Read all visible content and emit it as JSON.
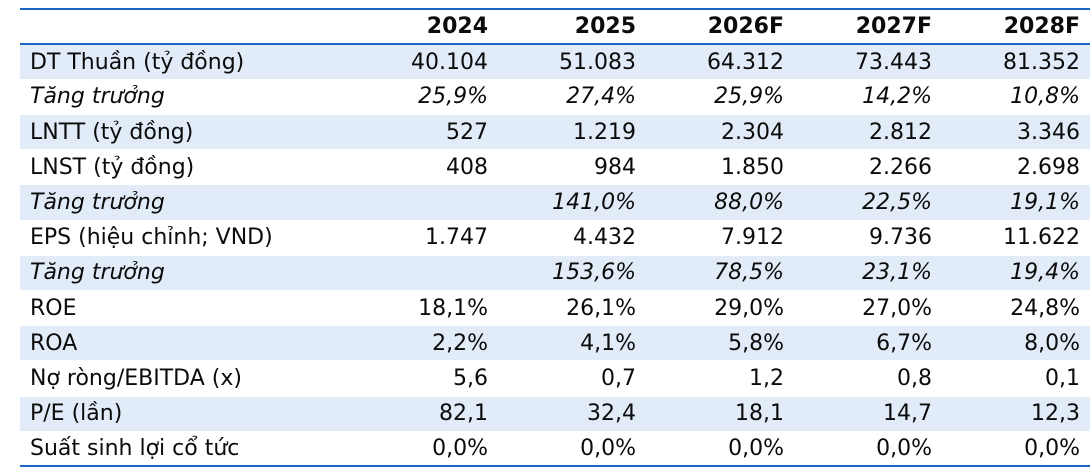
{
  "table": {
    "headers": [
      "",
      "2024",
      "2025",
      "2026F",
      "2027F",
      "2028F"
    ],
    "rows": [
      {
        "label": "DT Thuần (tỷ đồng)",
        "values": [
          "40.104",
          "51.083",
          "64.312",
          "73.443",
          "81.352"
        ]
      },
      {
        "label": "Tăng trưởng",
        "values": [
          "25,9%",
          "27,4%",
          "25,9%",
          "14,2%",
          "10,8%"
        ]
      },
      {
        "label": "LNTT (tỷ đồng)",
        "values": [
          "527",
          "1.219",
          "2.304",
          "2.812",
          "3.346"
        ]
      },
      {
        "label": "LNST (tỷ đồng)",
        "values": [
          "408",
          "984",
          "1.850",
          "2.266",
          "2.698"
        ]
      },
      {
        "label": "Tăng trưởng",
        "values": [
          "",
          "141,0%",
          "88,0%",
          "22,5%",
          "19,1%"
        ]
      },
      {
        "label": "EPS (hiệu chỉnh; VND)",
        "values": [
          "1.747",
          "4.432",
          "7.912",
          "9.736",
          "11.622"
        ]
      },
      {
        "label": "Tăng trưởng",
        "values": [
          "",
          "153,6%",
          "78,5%",
          "23,1%",
          "19,4%"
        ]
      },
      {
        "label": "ROE",
        "values": [
          "18,1%",
          "26,1%",
          "29,0%",
          "27,0%",
          "24,8%"
        ]
      },
      {
        "label": "ROA",
        "values": [
          "2,2%",
          "4,1%",
          "5,8%",
          "6,7%",
          "8,0%"
        ]
      },
      {
        "label": "Nợ ròng/EBITDA (x)",
        "values": [
          "5,6",
          "0,7",
          "1,2",
          "0,8",
          "0,1"
        ]
      },
      {
        "label": "P/E (lần)",
        "values": [
          "82,1",
          "32,4",
          "18,1",
          "14,7",
          "12,3"
        ]
      },
      {
        "label": "Suất sinh lợi cổ tức",
        "values": [
          "0,0%",
          "0,0%",
          "0,0%",
          "0,0%",
          "0,0%"
        ]
      }
    ]
  },
  "colors": {
    "rule": "#1a66c2",
    "shade": "#e2ecf8"
  }
}
